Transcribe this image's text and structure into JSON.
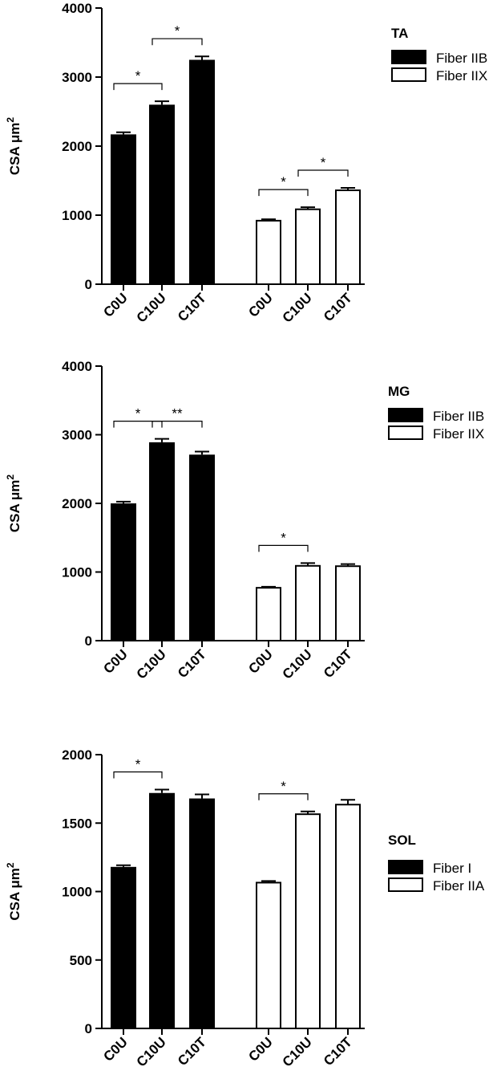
{
  "chart_data": [
    {
      "type": "bar",
      "panel": "TA",
      "legend_title": "TA",
      "ylabel": "CSA μm²",
      "ylim": [
        0,
        4000
      ],
      "yticks": [
        0,
        1000,
        2000,
        3000,
        4000
      ],
      "categories": [
        "C0U",
        "C10U",
        "C10T"
      ],
      "series": [
        {
          "name": "Fiber IIB",
          "color": "#000000",
          "fill": "filled",
          "values": [
            2170,
            2600,
            3250
          ],
          "errors": [
            30,
            50,
            50
          ]
        },
        {
          "name": "Fiber IIX",
          "color": "#ffffff",
          "fill": "open",
          "values": [
            920,
            1085,
            1360
          ],
          "errors": [
            20,
            30,
            35
          ]
        }
      ],
      "significance": [
        {
          "series": 0,
          "from": 0,
          "to": 1,
          "label": "*"
        },
        {
          "series": 0,
          "from": 1,
          "to": 2,
          "label": "*"
        },
        {
          "series": 1,
          "from": 0,
          "to": 1,
          "label": "*"
        },
        {
          "series": 1,
          "from": 1,
          "to": 2,
          "label": "*"
        }
      ]
    },
    {
      "type": "bar",
      "panel": "MG",
      "legend_title": "MG",
      "ylabel": "CSA μm²",
      "ylim": [
        0,
        4000
      ],
      "yticks": [
        0,
        1000,
        2000,
        3000,
        4000
      ],
      "categories": [
        "C0U",
        "C10U",
        "C10T"
      ],
      "series": [
        {
          "name": "Fiber IIB",
          "color": "#000000",
          "fill": "filled",
          "values": [
            2000,
            2890,
            2710
          ],
          "errors": [
            25,
            50,
            45
          ]
        },
        {
          "name": "Fiber IIX",
          "color": "#ffffff",
          "fill": "open",
          "values": [
            770,
            1090,
            1085
          ],
          "errors": [
            15,
            40,
            30
          ]
        }
      ],
      "significance": [
        {
          "series": 0,
          "from": 0,
          "to": 1,
          "label": "*"
        },
        {
          "series": 0,
          "from": 1,
          "to": 2,
          "label": "**"
        },
        {
          "series": 1,
          "from": 0,
          "to": 1,
          "label": "*"
        }
      ]
    },
    {
      "type": "bar",
      "panel": "SOL",
      "legend_title": "SOL",
      "ylabel": "CSA μm²",
      "ylim": [
        0,
        2000
      ],
      "yticks": [
        0,
        500,
        1000,
        1500,
        2000
      ],
      "categories": [
        "C0U",
        "C10U",
        "C10T"
      ],
      "series": [
        {
          "name": "Fiber I",
          "color": "#000000",
          "fill": "filled",
          "values": [
            1180,
            1720,
            1680
          ],
          "errors": [
            12,
            25,
            30
          ]
        },
        {
          "name": "Fiber IIA",
          "color": "#ffffff",
          "fill": "open",
          "values": [
            1065,
            1565,
            1635
          ],
          "errors": [
            12,
            20,
            35
          ]
        }
      ],
      "significance": [
        {
          "series": 0,
          "from": 0,
          "to": 1,
          "label": "*"
        },
        {
          "series": 1,
          "from": 0,
          "to": 1,
          "label": "*"
        }
      ]
    }
  ]
}
